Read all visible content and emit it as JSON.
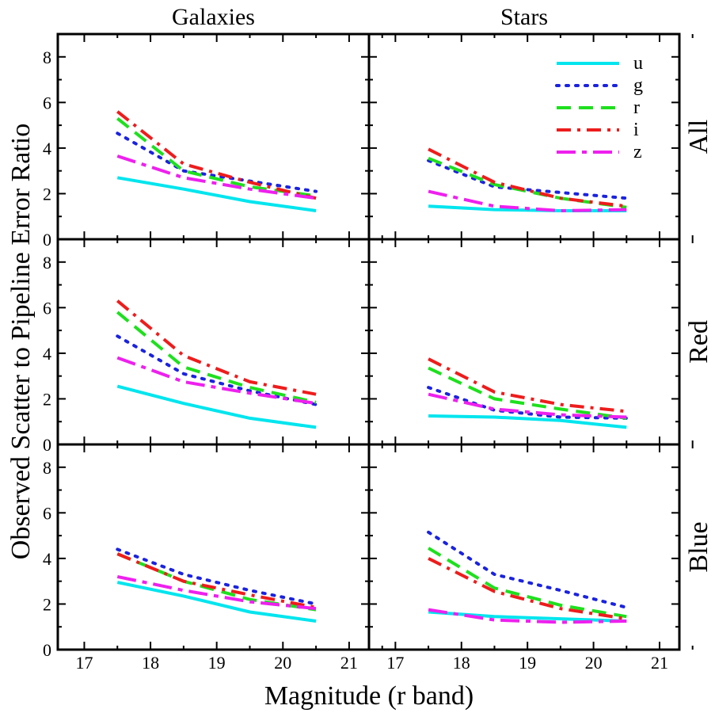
{
  "chart_data": {
    "type": "line",
    "columns": [
      "Galaxies",
      "Stars"
    ],
    "rows": [
      "All",
      "Red",
      "Blue"
    ],
    "xlabel": "Magnitude (r band)",
    "ylabel": "Observed Scatter to Pipeline Error Ratio",
    "xlim": [
      16.6,
      21.3
    ],
    "ylim": [
      0,
      9
    ],
    "xticks": [
      17,
      18,
      19,
      20,
      21
    ],
    "yticks": [
      0,
      2,
      4,
      6,
      8
    ],
    "x": [
      17.5,
      18.5,
      19.5,
      20.5
    ],
    "legend": {
      "placement": "top-right of Stars / All panel",
      "entries": [
        "u",
        "g",
        "r",
        "i",
        "z"
      ]
    },
    "series_styles": [
      {
        "name": "u",
        "color": "#00e5ee",
        "dash": "solid"
      },
      {
        "name": "g",
        "color": "#1a22e0",
        "dash": "dotted"
      },
      {
        "name": "r",
        "color": "#1ee01e",
        "dash": "dashed"
      },
      {
        "name": "i",
        "color": "#ee1c1c",
        "dash": "dash-dot"
      },
      {
        "name": "z",
        "color": "#ee20ee",
        "dash": "long-dash-dot"
      }
    ],
    "panels": [
      {
        "row": "All",
        "col": "Galaxies",
        "series": {
          "u": [
            2.7,
            2.2,
            1.65,
            1.25
          ],
          "g": [
            4.65,
            3.0,
            2.55,
            2.1
          ],
          "r": [
            5.3,
            3.0,
            2.3,
            1.9
          ],
          "i": [
            5.6,
            3.3,
            2.5,
            1.8
          ],
          "z": [
            3.65,
            2.7,
            2.2,
            1.8
          ]
        }
      },
      {
        "row": "All",
        "col": "Stars",
        "series": {
          "u": [
            1.45,
            1.3,
            1.25,
            1.25
          ],
          "g": [
            3.45,
            2.3,
            2.05,
            1.8
          ],
          "r": [
            3.55,
            2.4,
            1.8,
            1.4
          ],
          "i": [
            3.95,
            2.5,
            1.8,
            1.45
          ],
          "z": [
            2.1,
            1.45,
            1.25,
            1.3
          ]
        }
      },
      {
        "row": "Red",
        "col": "Galaxies",
        "series": {
          "u": [
            2.55,
            1.8,
            1.15,
            0.75
          ],
          "g": [
            4.75,
            3.1,
            2.35,
            1.75
          ],
          "r": [
            5.8,
            3.4,
            2.5,
            1.85
          ],
          "i": [
            6.3,
            3.9,
            2.75,
            2.2
          ],
          "z": [
            3.8,
            2.75,
            2.25,
            1.8
          ]
        }
      },
      {
        "row": "Red",
        "col": "Stars",
        "series": {
          "u": [
            1.25,
            1.2,
            1.05,
            0.75
          ],
          "g": [
            2.5,
            1.5,
            1.2,
            1.15
          ],
          "r": [
            3.35,
            2.0,
            1.55,
            1.15
          ],
          "i": [
            3.75,
            2.3,
            1.75,
            1.45
          ],
          "z": [
            2.2,
            1.55,
            1.3,
            1.2
          ]
        }
      },
      {
        "row": "Blue",
        "col": "Galaxies",
        "series": {
          "u": [
            2.95,
            2.35,
            1.65,
            1.25
          ],
          "g": [
            4.4,
            3.3,
            2.6,
            2.0
          ],
          "r": [
            4.2,
            3.0,
            2.2,
            1.75
          ],
          "i": [
            4.2,
            3.0,
            2.4,
            1.85
          ],
          "z": [
            3.2,
            2.6,
            2.1,
            1.8
          ]
        }
      },
      {
        "row": "Blue",
        "col": "Stars",
        "series": {
          "u": [
            1.65,
            1.45,
            1.35,
            1.25
          ],
          "g": [
            5.15,
            3.3,
            2.6,
            1.85
          ],
          "r": [
            4.45,
            2.7,
            1.95,
            1.45
          ],
          "i": [
            4.0,
            2.55,
            1.8,
            1.35
          ],
          "z": [
            1.75,
            1.3,
            1.2,
            1.25
          ]
        }
      }
    ]
  }
}
